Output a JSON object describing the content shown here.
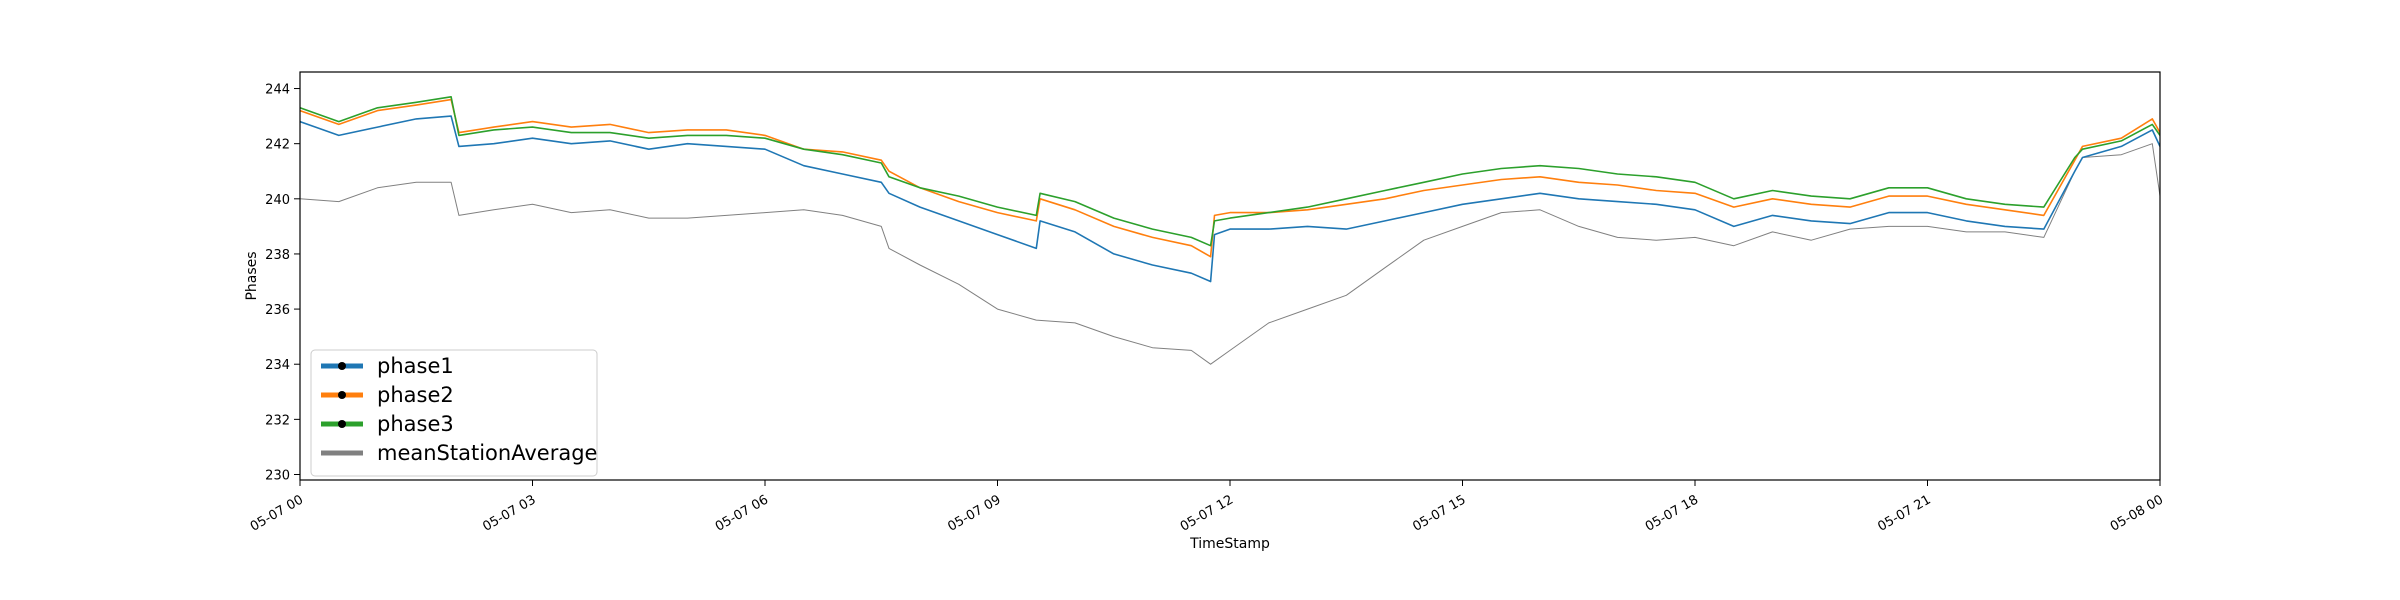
{
  "chart_data": {
    "type": "line",
    "title": "",
    "xlabel": "TimeStamp",
    "ylabel": "Phases",
    "xlim_hours": [
      0,
      24
    ],
    "ylim": [
      229.8,
      244.6
    ],
    "grid": false,
    "legend_placement": "lower-left",
    "x_tick_labels": [
      "05-07 00",
      "05-07 03",
      "05-07 06",
      "05-07 09",
      "05-07 12",
      "05-07 15",
      "05-07 18",
      "05-07 21",
      "05-08 00"
    ],
    "x_tick_hours": [
      0,
      3,
      6,
      9,
      12,
      15,
      18,
      21,
      24
    ],
    "y_ticks": [
      230,
      232,
      234,
      236,
      238,
      240,
      242,
      244
    ],
    "series": [
      {
        "name": "phase1",
        "color": "#1f77b4",
        "marker_color": "#000000",
        "x_hours": [
          0,
          0.5,
          1,
          1.5,
          1.95,
          2.05,
          2.5,
          3,
          3.5,
          4,
          4.5,
          5,
          5.5,
          6,
          6.5,
          7,
          7.5,
          7.6,
          8,
          8.5,
          9,
          9.5,
          9.55,
          10,
          10.5,
          11,
          11.5,
          11.75,
          11.8,
          12,
          12.5,
          13,
          13.5,
          14,
          14.5,
          15,
          15.5,
          16,
          16.5,
          17,
          17.5,
          18,
          18.5,
          19,
          19.5,
          20,
          20.5,
          21,
          21.5,
          22,
          22.5,
          22.9,
          23,
          23.5,
          23.9,
          24
        ],
        "values": [
          242.8,
          242.3,
          242.6,
          242.9,
          243.0,
          241.9,
          242.0,
          242.2,
          242.0,
          242.1,
          241.8,
          242.0,
          241.9,
          241.8,
          241.2,
          240.9,
          240.6,
          240.2,
          239.7,
          239.2,
          238.7,
          238.2,
          239.2,
          238.8,
          238.0,
          237.6,
          237.3,
          237.0,
          238.7,
          238.9,
          238.9,
          239.0,
          238.9,
          239.2,
          239.5,
          239.8,
          240.0,
          240.2,
          240.0,
          239.9,
          239.8,
          239.6,
          239.0,
          239.4,
          239.2,
          239.1,
          239.5,
          239.5,
          239.2,
          239.0,
          238.9,
          241.0,
          241.5,
          241.9,
          242.5,
          241.9
        ]
      },
      {
        "name": "phase2",
        "color": "#ff7f0e",
        "marker_color": "#000000",
        "x_hours": [
          0,
          0.5,
          1,
          1.5,
          1.95,
          2.05,
          2.5,
          3,
          3.5,
          4,
          4.5,
          5,
          5.5,
          6,
          6.5,
          7,
          7.5,
          7.6,
          8,
          8.5,
          9,
          9.5,
          9.55,
          10,
          10.5,
          11,
          11.5,
          11.75,
          11.8,
          12,
          12.5,
          13,
          13.5,
          14,
          14.5,
          15,
          15.5,
          16,
          16.5,
          17,
          17.5,
          18,
          18.5,
          19,
          19.5,
          20,
          20.5,
          21,
          21.5,
          22,
          22.5,
          22.9,
          23,
          23.5,
          23.9,
          24
        ],
        "values": [
          243.2,
          242.7,
          243.2,
          243.4,
          243.6,
          242.4,
          242.6,
          242.8,
          242.6,
          242.7,
          242.4,
          242.5,
          242.5,
          242.3,
          241.8,
          241.7,
          241.4,
          241.0,
          240.4,
          239.9,
          239.5,
          239.2,
          240.0,
          239.6,
          239.0,
          238.6,
          238.3,
          237.9,
          239.4,
          239.5,
          239.5,
          239.6,
          239.8,
          240.0,
          240.3,
          240.5,
          240.7,
          240.8,
          240.6,
          240.5,
          240.3,
          240.2,
          239.7,
          240.0,
          239.8,
          239.7,
          240.1,
          240.1,
          239.8,
          239.6,
          239.4,
          241.4,
          241.9,
          242.2,
          242.9,
          242.4
        ]
      },
      {
        "name": "phase3",
        "color": "#2ca02c",
        "marker_color": "#000000",
        "x_hours": [
          0,
          0.5,
          1,
          1.5,
          1.95,
          2.05,
          2.5,
          3,
          3.5,
          4,
          4.5,
          5,
          5.5,
          6,
          6.5,
          7,
          7.5,
          7.6,
          8,
          8.5,
          9,
          9.5,
          9.55,
          10,
          10.5,
          11,
          11.5,
          11.75,
          11.8,
          12,
          12.5,
          13,
          13.5,
          14,
          14.5,
          15,
          15.5,
          16,
          16.5,
          17,
          17.5,
          18,
          18.5,
          19,
          19.5,
          20,
          20.5,
          21,
          21.5,
          22,
          22.5,
          22.9,
          23,
          23.5,
          23.9,
          24
        ],
        "values": [
          243.3,
          242.8,
          243.3,
          243.5,
          243.7,
          242.3,
          242.5,
          242.6,
          242.4,
          242.4,
          242.2,
          242.3,
          242.3,
          242.2,
          241.8,
          241.6,
          241.3,
          240.8,
          240.4,
          240.1,
          239.7,
          239.4,
          240.2,
          239.9,
          239.3,
          238.9,
          238.6,
          238.3,
          239.2,
          239.3,
          239.5,
          239.7,
          240.0,
          240.3,
          240.6,
          240.9,
          241.1,
          241.2,
          241.1,
          240.9,
          240.8,
          240.6,
          240.0,
          240.3,
          240.1,
          240.0,
          240.4,
          240.4,
          240.0,
          239.8,
          239.7,
          241.5,
          241.8,
          242.1,
          242.7,
          242.3
        ]
      },
      {
        "name": "meanStationAverage",
        "color": "#808080",
        "x_hours": [
          0,
          0.5,
          1,
          1.5,
          1.95,
          2.05,
          2.5,
          3,
          3.5,
          4,
          4.5,
          5,
          5.5,
          6,
          6.5,
          7,
          7.5,
          7.6,
          8,
          8.5,
          9,
          9.5,
          10,
          10.5,
          11,
          11.5,
          11.75,
          12,
          12.5,
          13,
          13.5,
          14,
          14.5,
          15,
          15.5,
          16,
          16.5,
          17,
          17.5,
          18,
          18.5,
          19,
          19.5,
          20,
          20.5,
          21,
          21.5,
          22,
          22.5,
          22.9,
          23,
          23.5,
          23.9,
          24
        ],
        "values": [
          240.0,
          239.9,
          240.4,
          240.6,
          240.6,
          239.4,
          239.6,
          239.8,
          239.5,
          239.6,
          239.3,
          239.3,
          239.4,
          239.5,
          239.6,
          239.4,
          239.0,
          238.2,
          237.6,
          236.9,
          236.0,
          235.6,
          235.5,
          235.0,
          234.6,
          234.5,
          234.0,
          234.5,
          235.5,
          236.0,
          236.5,
          237.5,
          238.5,
          239.0,
          239.5,
          239.6,
          239.0,
          238.6,
          238.5,
          238.6,
          238.3,
          238.8,
          238.5,
          238.9,
          239.0,
          239.0,
          238.8,
          238.8,
          238.6,
          241.0,
          241.5,
          241.6,
          242.0,
          240.1
        ]
      }
    ]
  }
}
